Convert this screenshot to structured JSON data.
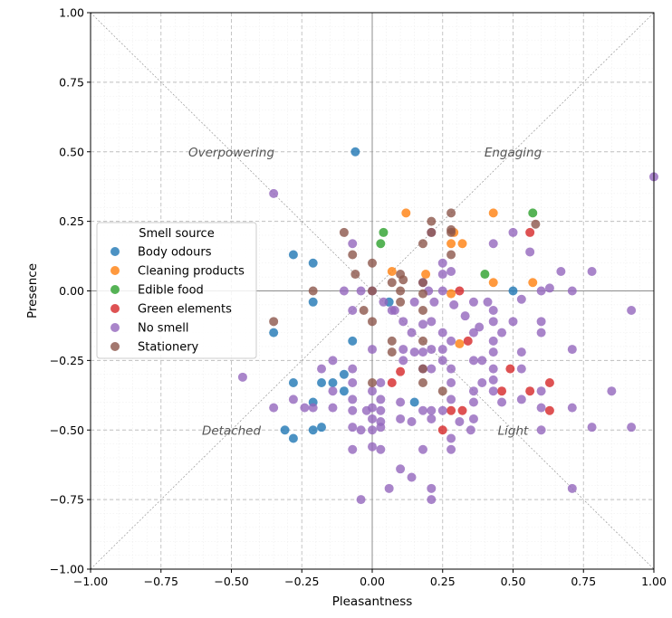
{
  "chart_data": {
    "type": "scatter",
    "xlabel": "Pleasantness",
    "ylabel": "Presence",
    "xlim": [
      -1.0,
      1.0
    ],
    "ylim": [
      -1.0,
      1.0
    ],
    "xticks": [
      "−1.00",
      "−0.75",
      "−0.50",
      "−0.25",
      "0.00",
      "0.25",
      "0.50",
      "0.75",
      "1.00"
    ],
    "yticks": [
      "−1.00",
      "−0.75",
      "−0.50",
      "−0.25",
      "0.00",
      "0.25",
      "0.50",
      "0.75",
      "1.00"
    ],
    "tick_values": [
      -1.0,
      -0.75,
      -0.5,
      -0.25,
      0.0,
      0.25,
      0.5,
      0.75,
      1.0
    ],
    "grid": true,
    "quadrant_labels": [
      {
        "text": "Overpowering",
        "x": -0.5,
        "y": 0.5
      },
      {
        "text": "Engaging",
        "x": 0.5,
        "y": 0.5
      },
      {
        "text": "Detached",
        "x": -0.5,
        "y": -0.5
      },
      {
        "text": "Light",
        "x": 0.5,
        "y": -0.5
      }
    ],
    "legend": {
      "title": "Smell source",
      "position": "center-left"
    },
    "series": [
      {
        "name": "Body odours",
        "color": "#1f77b4",
        "points": [
          [
            -0.06,
            0.5
          ],
          [
            -0.28,
            0.13
          ],
          [
            -0.21,
            0.1
          ],
          [
            -0.21,
            -0.04
          ],
          [
            -0.35,
            -0.15
          ],
          [
            -0.07,
            -0.18
          ],
          [
            -0.28,
            -0.33
          ],
          [
            -0.18,
            -0.33
          ],
          [
            -0.14,
            -0.33
          ],
          [
            -0.1,
            -0.3
          ],
          [
            -0.1,
            -0.36
          ],
          [
            -0.21,
            -0.4
          ],
          [
            -0.31,
            -0.5
          ],
          [
            -0.28,
            -0.53
          ],
          [
            -0.21,
            -0.5
          ],
          [
            -0.18,
            -0.49
          ],
          [
            0.06,
            -0.04
          ],
          [
            0.5,
            0.0
          ],
          [
            0.15,
            -0.4
          ]
        ]
      },
      {
        "name": "Cleaning products",
        "color": "#ff7f0e",
        "points": [
          [
            0.12,
            0.28
          ],
          [
            0.43,
            0.28
          ],
          [
            0.29,
            0.21
          ],
          [
            0.28,
            0.17
          ],
          [
            0.32,
            0.17
          ],
          [
            0.19,
            0.06
          ],
          [
            0.07,
            0.07
          ],
          [
            0.43,
            0.03
          ],
          [
            0.57,
            0.03
          ],
          [
            0.28,
            -0.01
          ],
          [
            0.31,
            -0.19
          ]
        ]
      },
      {
        "name": "Edible food",
        "color": "#2ca02c",
        "points": [
          [
            0.04,
            0.21
          ],
          [
            0.03,
            0.17
          ],
          [
            0.57,
            0.28
          ],
          [
            0.4,
            0.06
          ]
        ]
      },
      {
        "name": "Green elements",
        "color": "#d62728",
        "points": [
          [
            0.56,
            0.21
          ],
          [
            0.31,
            0.0
          ],
          [
            0.34,
            -0.18
          ],
          [
            0.1,
            -0.29
          ],
          [
            0.07,
            -0.33
          ],
          [
            0.49,
            -0.28
          ],
          [
            0.46,
            -0.36
          ],
          [
            0.56,
            -0.36
          ],
          [
            0.63,
            -0.33
          ],
          [
            0.63,
            -0.43
          ],
          [
            0.28,
            -0.43
          ],
          [
            0.32,
            -0.43
          ],
          [
            0.25,
            -0.5
          ]
        ]
      },
      {
        "name": "No smell",
        "color": "#9467bd",
        "points": [
          [
            -0.35,
            0.35
          ],
          [
            -0.07,
            0.17
          ],
          [
            0.0,
            0.0
          ],
          [
            -0.1,
            0.0
          ],
          [
            -0.04,
            0.0
          ],
          [
            -0.07,
            -0.07
          ],
          [
            0.08,
            -0.07
          ],
          [
            0.11,
            -0.11
          ],
          [
            0.15,
            -0.04
          ],
          [
            0.2,
            0.0
          ],
          [
            0.25,
            0.0
          ],
          [
            0.25,
            0.06
          ],
          [
            0.25,
            0.1
          ],
          [
            0.28,
            0.07
          ],
          [
            0.36,
            -0.04
          ],
          [
            0.41,
            -0.04
          ],
          [
            0.43,
            -0.07
          ],
          [
            0.43,
            -0.11
          ],
          [
            0.46,
            -0.15
          ],
          [
            0.43,
            -0.18
          ],
          [
            0.5,
            -0.11
          ],
          [
            0.53,
            -0.03
          ],
          [
            0.6,
            0.0
          ],
          [
            0.63,
            0.01
          ],
          [
            0.67,
            0.07
          ],
          [
            0.78,
            0.07
          ],
          [
            0.71,
            0.0
          ],
          [
            0.56,
            0.14
          ],
          [
            0.5,
            0.21
          ],
          [
            0.43,
            0.17
          ],
          [
            0.6,
            -0.11
          ],
          [
            0.6,
            -0.15
          ],
          [
            0.53,
            -0.22
          ],
          [
            0.43,
            -0.22
          ],
          [
            0.43,
            -0.28
          ],
          [
            0.39,
            -0.25
          ],
          [
            0.36,
            -0.15
          ],
          [
            0.36,
            -0.25
          ],
          [
            0.36,
            -0.36
          ],
          [
            0.39,
            -0.33
          ],
          [
            0.36,
            -0.4
          ],
          [
            0.36,
            -0.46
          ],
          [
            0.43,
            -0.32
          ],
          [
            0.43,
            -0.36
          ],
          [
            0.46,
            -0.4
          ],
          [
            0.53,
            -0.28
          ],
          [
            0.53,
            -0.39
          ],
          [
            0.6,
            -0.36
          ],
          [
            0.6,
            -0.42
          ],
          [
            0.6,
            -0.5
          ],
          [
            0.71,
            -0.21
          ],
          [
            0.71,
            -0.42
          ],
          [
            0.78,
            -0.49
          ],
          [
            0.85,
            -0.36
          ],
          [
            0.92,
            -0.07
          ],
          [
            0.92,
            -0.49
          ],
          [
            1.0,
            0.41
          ],
          [
            0.71,
            -0.71
          ],
          [
            0.28,
            -0.18
          ],
          [
            0.28,
            -0.28
          ],
          [
            0.28,
            -0.33
          ],
          [
            0.25,
            -0.25
          ],
          [
            0.25,
            -0.21
          ],
          [
            0.25,
            -0.15
          ],
          [
            0.21,
            -0.21
          ],
          [
            0.21,
            -0.11
          ],
          [
            0.18,
            -0.12
          ],
          [
            0.18,
            -0.22
          ],
          [
            0.15,
            -0.22
          ],
          [
            0.11,
            -0.21
          ],
          [
            0.11,
            -0.25
          ],
          [
            0.14,
            -0.15
          ],
          [
            0.07,
            -0.07
          ],
          [
            0.04,
            -0.04
          ],
          [
            0.0,
            -0.21
          ],
          [
            -0.07,
            -0.28
          ],
          [
            -0.14,
            -0.25
          ],
          [
            -0.18,
            -0.28
          ],
          [
            -0.14,
            -0.36
          ],
          [
            -0.07,
            -0.33
          ],
          [
            -0.07,
            -0.39
          ],
          [
            -0.14,
            -0.42
          ],
          [
            -0.07,
            -0.43
          ],
          [
            -0.07,
            -0.49
          ],
          [
            -0.04,
            -0.5
          ],
          [
            0.0,
            -0.5
          ],
          [
            0.0,
            -0.46
          ],
          [
            -0.02,
            -0.43
          ],
          [
            0.0,
            -0.42
          ],
          [
            0.0,
            -0.36
          ],
          [
            0.03,
            -0.39
          ],
          [
            0.03,
            -0.43
          ],
          [
            0.03,
            -0.47
          ],
          [
            0.03,
            -0.49
          ],
          [
            0.03,
            -0.33
          ],
          [
            0.0,
            -0.56
          ],
          [
            0.03,
            -0.57
          ],
          [
            -0.07,
            -0.57
          ],
          [
            0.1,
            -0.4
          ],
          [
            0.1,
            -0.46
          ],
          [
            0.14,
            -0.47
          ],
          [
            0.18,
            -0.43
          ],
          [
            0.21,
            -0.43
          ],
          [
            0.21,
            -0.46
          ],
          [
            0.25,
            -0.43
          ],
          [
            0.21,
            -0.28
          ],
          [
            0.18,
            -0.28
          ],
          [
            0.28,
            -0.39
          ],
          [
            0.31,
            -0.47
          ],
          [
            0.28,
            -0.53
          ],
          [
            0.28,
            -0.57
          ],
          [
            0.35,
            -0.5
          ],
          [
            0.18,
            -0.57
          ],
          [
            0.1,
            -0.64
          ],
          [
            0.14,
            -0.67
          ],
          [
            0.06,
            -0.71
          ],
          [
            0.21,
            -0.71
          ],
          [
            0.21,
            -0.75
          ],
          [
            -0.04,
            -0.75
          ],
          [
            -0.21,
            -0.42
          ],
          [
            -0.24,
            -0.42
          ],
          [
            -0.28,
            -0.39
          ],
          [
            -0.35,
            -0.42
          ],
          [
            -0.46,
            -0.31
          ],
          [
            0.21,
            0.21
          ],
          [
            0.18,
            0.03
          ],
          [
            0.22,
            -0.04
          ],
          [
            0.29,
            -0.05
          ],
          [
            0.33,
            -0.09
          ],
          [
            0.38,
            -0.13
          ]
        ]
      },
      {
        "name": "Stationery",
        "color": "#8c564b",
        "points": [
          [
            -0.1,
            0.21
          ],
          [
            0.28,
            0.28
          ],
          [
            0.21,
            0.25
          ],
          [
            0.21,
            0.21
          ],
          [
            0.28,
            0.22
          ],
          [
            0.18,
            0.17
          ],
          [
            0.58,
            0.24
          ],
          [
            -0.07,
            0.13
          ],
          [
            0.0,
            0.1
          ],
          [
            -0.06,
            0.06
          ],
          [
            0.1,
            0.06
          ],
          [
            0.07,
            0.03
          ],
          [
            0.18,
            0.03
          ],
          [
            0.28,
            0.13
          ],
          [
            0.0,
            0.0
          ],
          [
            -0.21,
            0.0
          ],
          [
            0.1,
            0.0
          ],
          [
            0.18,
            -0.01
          ],
          [
            0.0,
            -0.11
          ],
          [
            -0.03,
            -0.07
          ],
          [
            0.1,
            -0.04
          ],
          [
            0.18,
            -0.07
          ],
          [
            -0.35,
            -0.11
          ],
          [
            0.07,
            -0.18
          ],
          [
            0.07,
            -0.22
          ],
          [
            0.18,
            -0.18
          ],
          [
            0.18,
            -0.28
          ],
          [
            0.25,
            -0.36
          ],
          [
            0.18,
            -0.33
          ],
          [
            0.0,
            -0.33
          ],
          [
            0.28,
            0.21
          ],
          [
            0.11,
            0.04
          ]
        ]
      }
    ]
  }
}
